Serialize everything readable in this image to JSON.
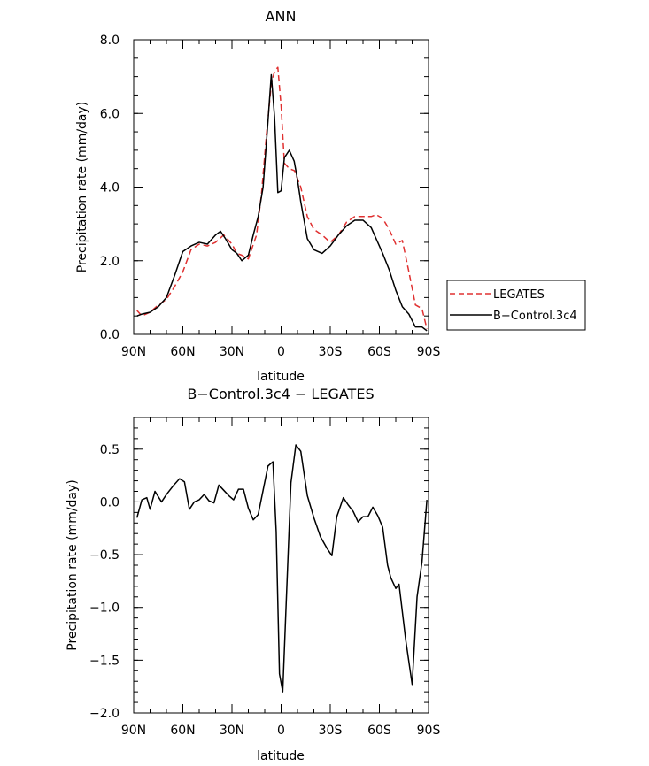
{
  "chart_data": [
    {
      "type": "line",
      "title": "ANN",
      "xlabel": "latitude",
      "ylabel": "Precipitation rate (mm/day)",
      "xlim": [
        -90,
        90
      ],
      "ylim": [
        0,
        8
      ],
      "x_tick_values": [
        -90,
        -60,
        -30,
        0,
        30,
        60,
        90
      ],
      "x_tick_labels": [
        "90N",
        "60N",
        "30N",
        "0",
        "30S",
        "60S",
        "90S"
      ],
      "y_tick_values": [
        0,
        2,
        4,
        6,
        8
      ],
      "y_tick_labels": [
        "0.0",
        "2.0",
        "4.0",
        "6.0",
        "8.0"
      ],
      "legend": {
        "position": "right",
        "entries": [
          {
            "label": "LEGATES",
            "color": "#e03030",
            "dash": "dashed"
          },
          {
            "label": "B−Control.3c4",
            "color": "#000000",
            "dash": "solid"
          }
        ]
      },
      "series": [
        {
          "name": "LEGATES",
          "color": "#e03030",
          "dash": "dashed",
          "x": [
            -88,
            -85,
            -80,
            -75,
            -70,
            -65,
            -60,
            -55,
            -50,
            -45,
            -40,
            -35,
            -30,
            -27,
            -24,
            -20,
            -15,
            -12,
            -9,
            -6,
            -4,
            -2,
            0,
            2,
            5,
            8,
            12,
            16,
            20,
            25,
            30,
            35,
            40,
            45,
            50,
            55,
            58,
            62,
            66,
            70,
            74,
            78,
            82,
            86,
            89
          ],
          "values": [
            0.65,
            0.5,
            0.6,
            0.8,
            0.95,
            1.3,
            1.7,
            2.3,
            2.45,
            2.4,
            2.5,
            2.7,
            2.45,
            2.2,
            2.15,
            2.05,
            2.7,
            3.8,
            5.4,
            6.8,
            7.15,
            7.25,
            6.2,
            4.65,
            4.5,
            4.45,
            4.0,
            3.2,
            2.85,
            2.7,
            2.5,
            2.7,
            3.05,
            3.2,
            3.2,
            3.2,
            3.25,
            3.15,
            2.85,
            2.45,
            2.55,
            1.7,
            0.8,
            0.7,
            0.15
          ]
        },
        {
          "name": "B−Control.3c4",
          "color": "#000000",
          "dash": "solid",
          "x": [
            -88,
            -85,
            -80,
            -75,
            -70,
            -65,
            -60,
            -55,
            -50,
            -45,
            -40,
            -37,
            -34,
            -30,
            -27,
            -24,
            -20,
            -17,
            -14,
            -11,
            -8,
            -6,
            -4,
            -2,
            0,
            2,
            5,
            8,
            10,
            12,
            16,
            20,
            25,
            30,
            35,
            40,
            45,
            50,
            55,
            58,
            62,
            66,
            70,
            74,
            78,
            82,
            86,
            89
          ],
          "values": [
            0.5,
            0.55,
            0.6,
            0.75,
            1.0,
            1.6,
            2.25,
            2.4,
            2.5,
            2.45,
            2.7,
            2.8,
            2.6,
            2.3,
            2.2,
            2.0,
            2.15,
            2.7,
            3.2,
            4.0,
            5.8,
            7.05,
            5.9,
            3.85,
            3.9,
            4.8,
            5.0,
            4.7,
            4.2,
            3.6,
            2.6,
            2.3,
            2.2,
            2.4,
            2.7,
            2.95,
            3.1,
            3.1,
            2.9,
            2.6,
            2.2,
            1.75,
            1.2,
            0.75,
            0.55,
            0.2,
            0.2,
            0.1
          ]
        }
      ]
    },
    {
      "type": "line",
      "title": "B−Control.3c4 − LEGATES",
      "xlabel": "latitude",
      "ylabel": "Precipitation rate (mm/day)",
      "xlim": [
        -90,
        90
      ],
      "ylim": [
        -2,
        0.8
      ],
      "x_tick_values": [
        -90,
        -60,
        -30,
        0,
        30,
        60,
        90
      ],
      "x_tick_labels": [
        "90N",
        "60N",
        "30N",
        "0",
        "30S",
        "60S",
        "90S"
      ],
      "y_tick_values": [
        -2,
        -1.5,
        -1,
        -0.5,
        0,
        0.5
      ],
      "y_tick_labels": [
        "−2.0",
        "−1.5",
        "−1.0",
        "−0.5",
        "0.0",
        "0.5"
      ],
      "series": [
        {
          "name": "B−Control.3c4 − LEGATES",
          "color": "#000000",
          "dash": "solid",
          "x": [
            -88,
            -85,
            -82,
            -80,
            -77,
            -73,
            -70,
            -66,
            -62,
            -59,
            -56,
            -53,
            -50,
            -47,
            -44,
            -41,
            -38,
            -35,
            -32,
            -29,
            -26,
            -23,
            -20,
            -17,
            -14,
            -11,
            -8,
            -5,
            -3,
            -1,
            1,
            3,
            6,
            9,
            12,
            16,
            20,
            24,
            28,
            31,
            34,
            38,
            41,
            44,
            47,
            50,
            53,
            56,
            59,
            62,
            65,
            67,
            70,
            72,
            76,
            80,
            83,
            86,
            89
          ],
          "values": [
            -0.15,
            0.02,
            0.04,
            -0.07,
            0.1,
            0.0,
            0.07,
            0.15,
            0.22,
            0.19,
            -0.07,
            0.0,
            0.02,
            0.07,
            0.01,
            -0.01,
            0.16,
            0.11,
            0.06,
            0.02,
            0.12,
            0.12,
            -0.06,
            -0.17,
            -0.12,
            0.11,
            0.34,
            0.38,
            -0.28,
            -1.63,
            -1.8,
            -1.0,
            0.18,
            0.54,
            0.48,
            0.06,
            -0.15,
            -0.33,
            -0.44,
            -0.51,
            -0.14,
            0.04,
            -0.03,
            -0.09,
            -0.19,
            -0.14,
            -0.14,
            -0.05,
            -0.13,
            -0.24,
            -0.6,
            -0.72,
            -0.82,
            -0.78,
            -1.3,
            -1.73,
            -0.9,
            -0.57,
            0.02
          ]
        }
      ]
    }
  ]
}
